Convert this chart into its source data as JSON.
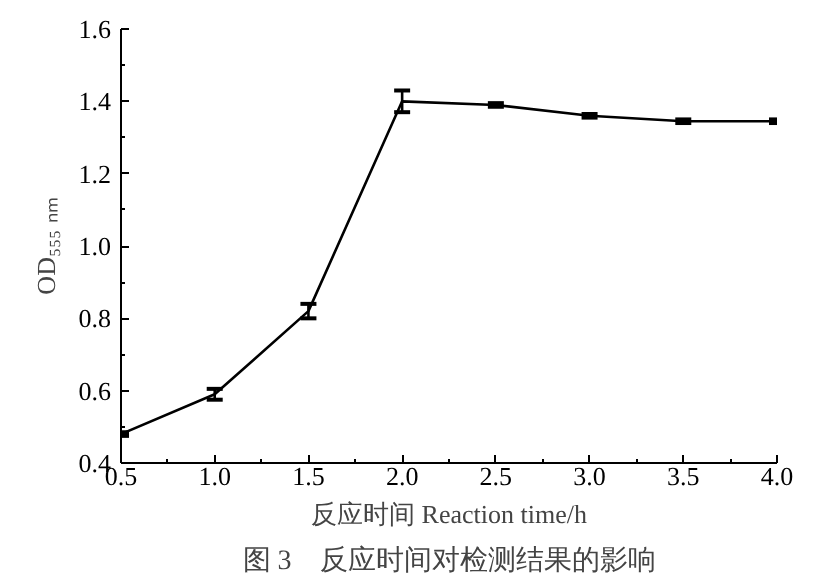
{
  "chart_data": {
    "type": "line",
    "xlabel": "反应时间 Reaction time/h",
    "ylabel": "OD₅₅₅ ₙₘ",
    "annotations": [
      "图 3　反应时间对检测结果的影响"
    ],
    "x": [
      0.5,
      1.0,
      1.5,
      2.0,
      2.5,
      3.0,
      3.5,
      4.0
    ],
    "series": [
      {
        "color": "#000000",
        "values": [
          0.48,
          0.59,
          0.82,
          1.4,
          1.39,
          1.36,
          1.345,
          1.345
        ],
        "errors": [
          0.005,
          0.015,
          0.02,
          0.03,
          0.005,
          0.005,
          0.005,
          0.005
        ]
      }
    ],
    "xlim": [
      0.5,
      4.0
    ],
    "ylim": [
      0.4,
      1.6
    ],
    "xticks": [
      0.5,
      {
        "value": 1,
        "label": "1.0"
      },
      1.5,
      {
        "value": 2,
        "label": "2.0"
      },
      2.5,
      {
        "value": 3,
        "label": "3.0"
      },
      3.5,
      {
        "value": 4,
        "label": "4.0"
      }
    ],
    "yticks": [
      0.4,
      0.6,
      0.8,
      {
        "value": 1,
        "label": "1.0"
      },
      1.2,
      1.4,
      1.6
    ],
    "grid": false,
    "marker": "none",
    "line_style": "solid"
  }
}
